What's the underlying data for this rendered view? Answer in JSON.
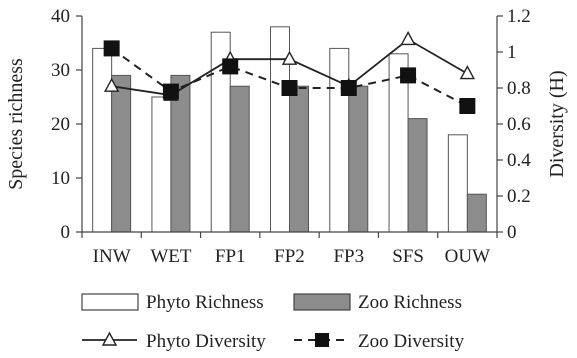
{
  "chart_data": {
    "type": "bar",
    "categories": [
      "INW",
      "WET",
      "FP1",
      "FP2",
      "FP3",
      "SFS",
      "OUW"
    ],
    "series": [
      {
        "name": "Phyto Richness",
        "kind": "bar",
        "axis": "left",
        "values": [
          34,
          25,
          37,
          38,
          34,
          33,
          18
        ]
      },
      {
        "name": "Zoo Richness",
        "kind": "bar",
        "axis": "left",
        "values": [
          29,
          29,
          27,
          27,
          27,
          21,
          7
        ]
      },
      {
        "name": "Phyto Diversity",
        "kind": "line",
        "axis": "right",
        "marker": "open-triangle",
        "dash": "solid",
        "values": [
          0.81,
          0.76,
          0.96,
          0.96,
          0.81,
          1.07,
          0.88
        ]
      },
      {
        "name": "Zoo Diversity",
        "kind": "line",
        "axis": "right",
        "marker": "filled-square",
        "dash": "dashed",
        "values": [
          1.02,
          0.78,
          0.92,
          0.8,
          0.8,
          0.87,
          0.7
        ]
      }
    ],
    "ylabel_left": "Species richness",
    "ylabel_right": "Diversity (H)",
    "ylim_left": [
      0,
      40
    ],
    "ylim_right": [
      0,
      1.2
    ],
    "yticks_left": [
      "0",
      "10",
      "20",
      "30",
      "40"
    ],
    "yticks_right": [
      "0",
      "0.2",
      "0.4",
      "0.6",
      "0.8",
      "1",
      "1.2"
    ],
    "grid": false,
    "legend_position": "bottom",
    "colors": {
      "phyto_bar": "#ffffff",
      "zoo_bar": "#8c8c8c",
      "line": "#222222"
    }
  }
}
